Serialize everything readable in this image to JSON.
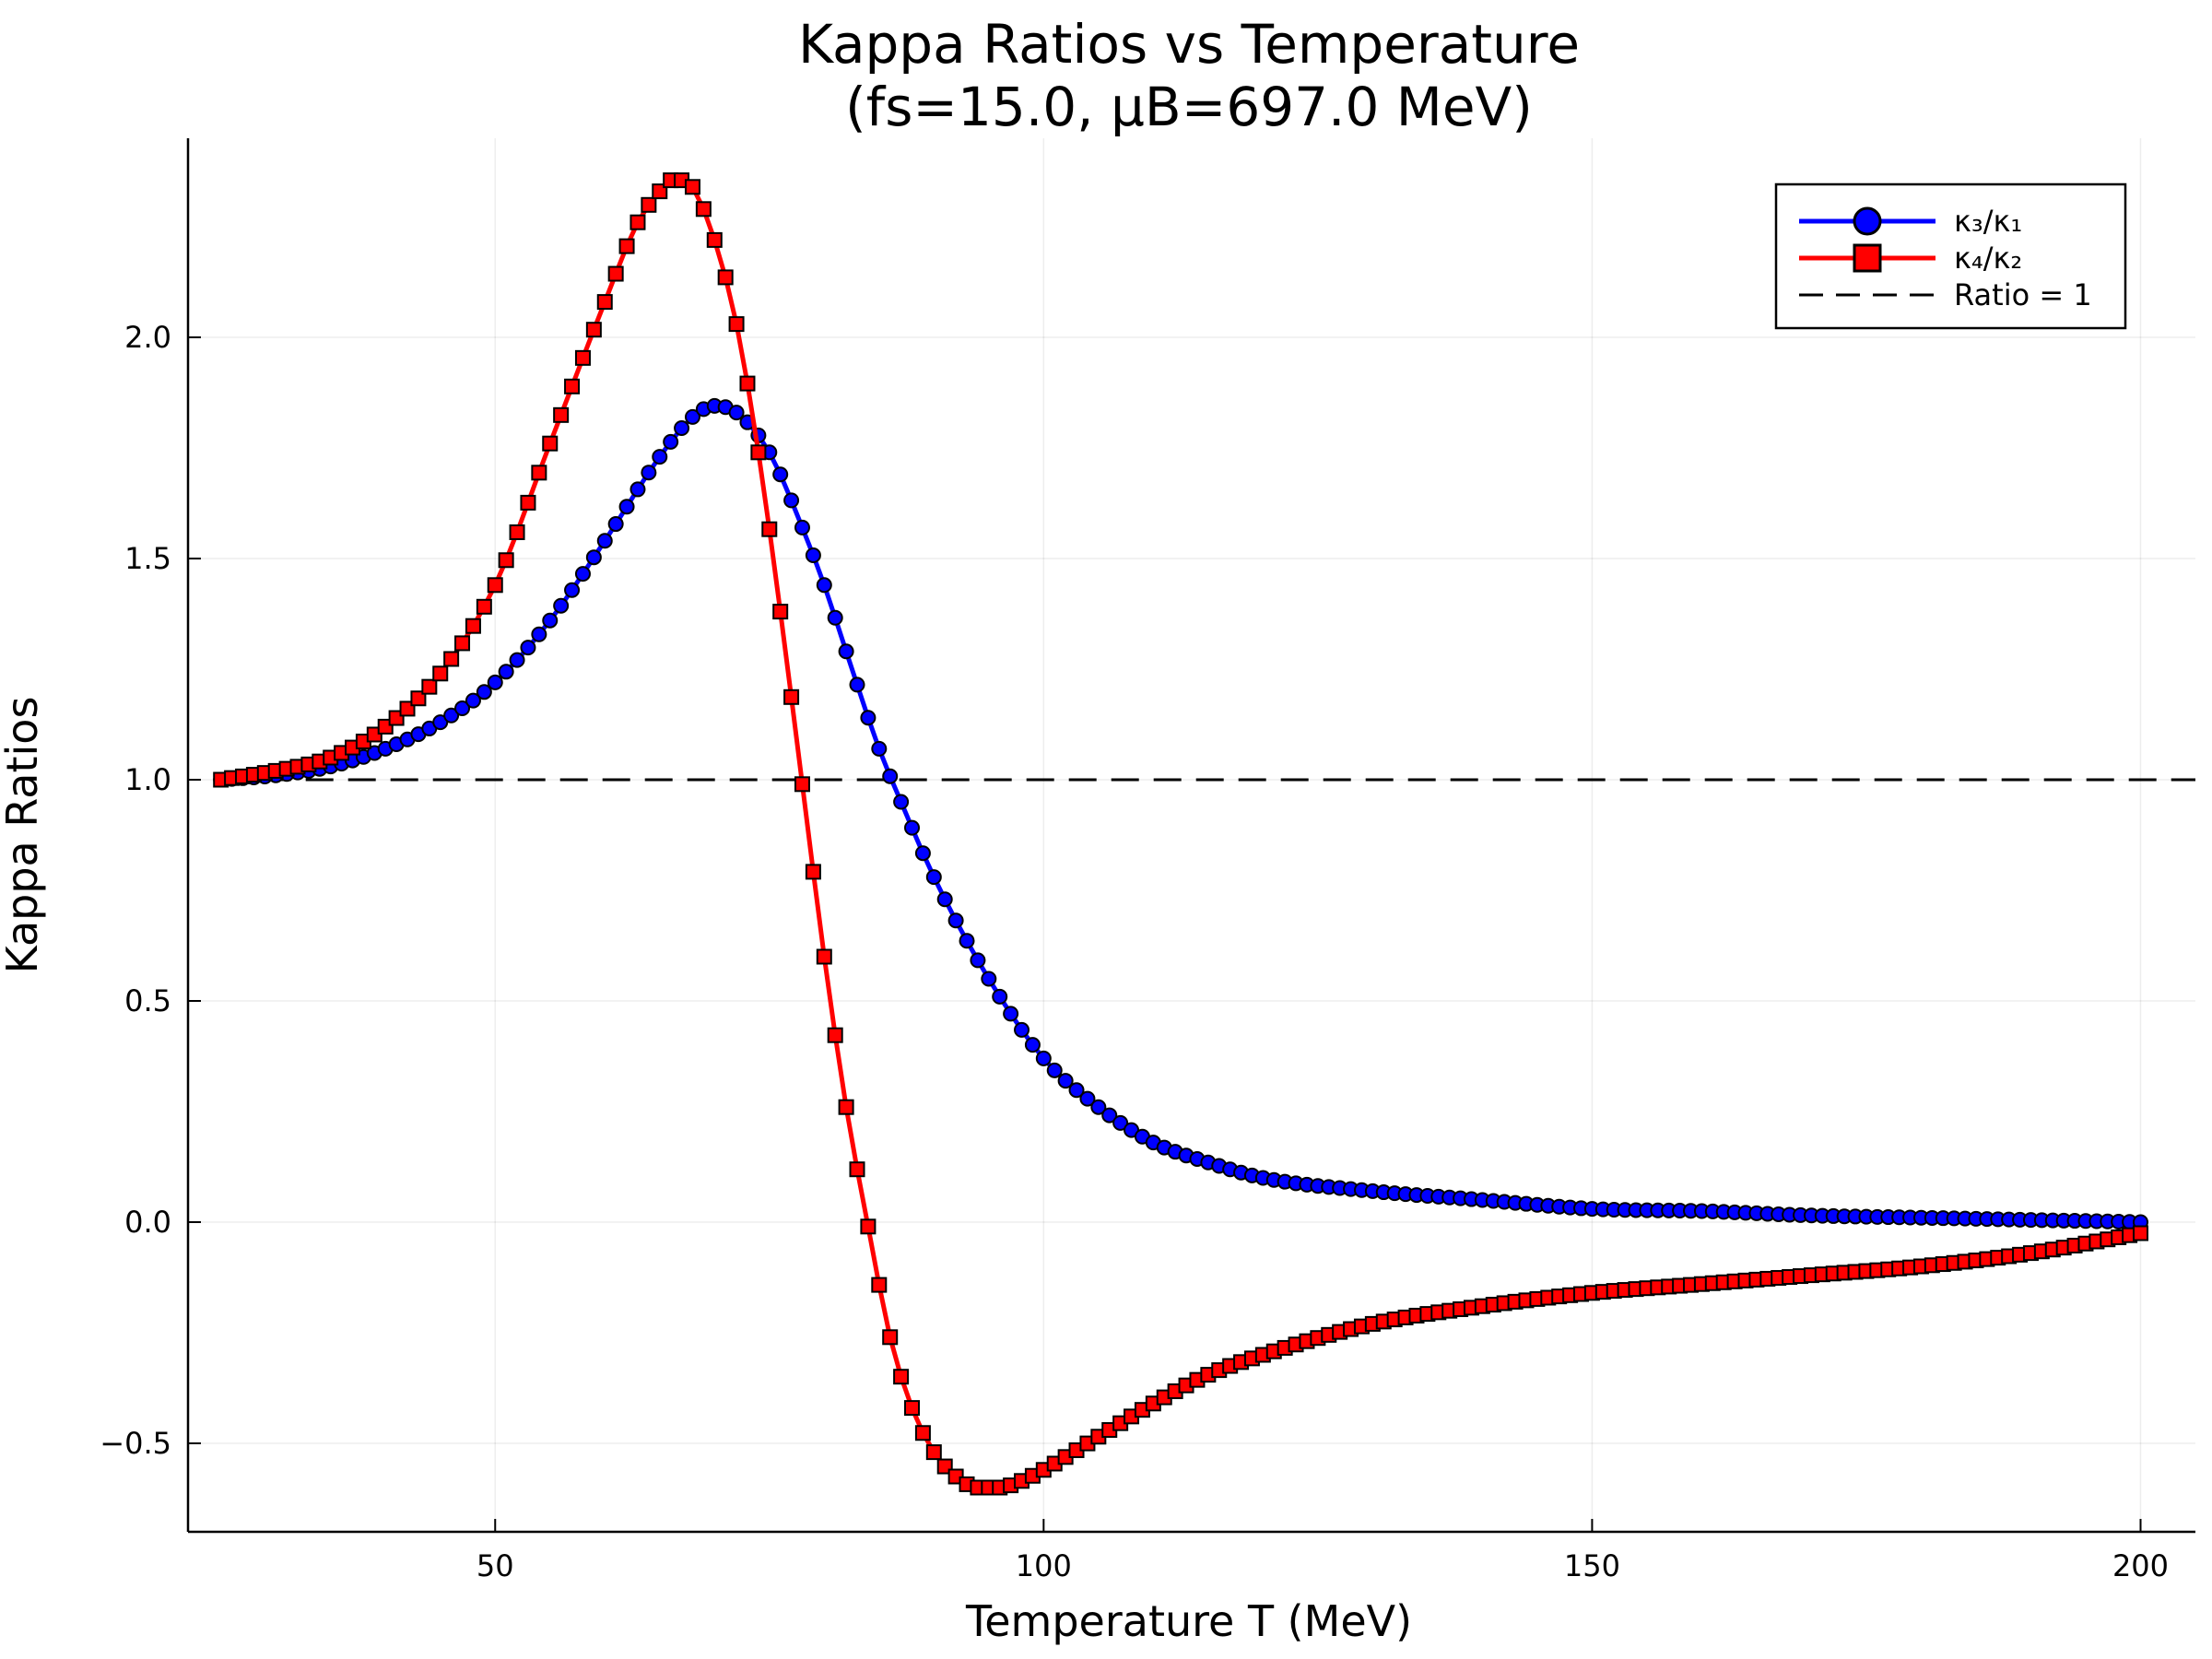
{
  "chart_data": {
    "type": "line",
    "title": "Kappa Ratios vs Temperature",
    "subtitle": "(fs=15.0, μB=697.0 MeV)",
    "xlabel": "Temperature T (MeV)",
    "ylabel": "Kappa Ratios",
    "xlim": [
      22,
      205
    ],
    "ylim": [
      -0.7,
      2.45
    ],
    "xticks": [
      50,
      100,
      150,
      200
    ],
    "xtick_labels": [
      "50",
      "100",
      "150",
      "200"
    ],
    "yticks": [
      -0.5,
      0.0,
      0.5,
      1.0,
      1.5,
      2.0
    ],
    "ytick_labels": [
      "−0.5",
      "0.0",
      "0.5",
      "1.0",
      "1.5",
      "2.0"
    ],
    "grid": true,
    "legend_position": "top-right",
    "x_start": 25,
    "x_end": 200,
    "x_step": 1,
    "series": [
      {
        "name": "κ₃/κ₁",
        "color": "#0000ff",
        "marker": "circle",
        "keypoints": [
          [
            25,
            1.0
          ],
          [
            30,
            1.01
          ],
          [
            35,
            1.03
          ],
          [
            40,
            1.07
          ],
          [
            45,
            1.13
          ],
          [
            50,
            1.22
          ],
          [
            55,
            1.36
          ],
          [
            60,
            1.54
          ],
          [
            65,
            1.73
          ],
          [
            68,
            1.82
          ],
          [
            70,
            1.845
          ],
          [
            72,
            1.83
          ],
          [
            75,
            1.74
          ],
          [
            78,
            1.57
          ],
          [
            80,
            1.44
          ],
          [
            82,
            1.29
          ],
          [
            85,
            1.07
          ],
          [
            87,
            0.95
          ],
          [
            90,
            0.78
          ],
          [
            95,
            0.55
          ],
          [
            100,
            0.37
          ],
          [
            105,
            0.26
          ],
          [
            110,
            0.18
          ],
          [
            115,
            0.135
          ],
          [
            120,
            0.1
          ],
          [
            130,
            0.07
          ],
          [
            140,
            0.05
          ],
          [
            150,
            0.03
          ],
          [
            160,
            0.025
          ],
          [
            170,
            0.015
          ],
          [
            180,
            0.01
          ],
          [
            190,
            0.005
          ],
          [
            200,
            0.0
          ]
        ]
      },
      {
        "name": "κ₄/κ₂",
        "color": "#ff0000",
        "marker": "square",
        "keypoints": [
          [
            25,
            1.0
          ],
          [
            30,
            1.02
          ],
          [
            35,
            1.05
          ],
          [
            40,
            1.12
          ],
          [
            45,
            1.24
          ],
          [
            50,
            1.44
          ],
          [
            55,
            1.76
          ],
          [
            60,
            2.08
          ],
          [
            63,
            2.26
          ],
          [
            65,
            2.33
          ],
          [
            66,
            2.355
          ],
          [
            67,
            2.355
          ],
          [
            68,
            2.34
          ],
          [
            70,
            2.22
          ],
          [
            72,
            2.03
          ],
          [
            74,
            1.74
          ],
          [
            76,
            1.38
          ],
          [
            78,
            0.99
          ],
          [
            80,
            0.6
          ],
          [
            82,
            0.26
          ],
          [
            84,
            -0.01
          ],
          [
            86,
            -0.26
          ],
          [
            88,
            -0.42
          ],
          [
            90,
            -0.52
          ],
          [
            92,
            -0.575
          ],
          [
            94,
            -0.6
          ],
          [
            96,
            -0.6
          ],
          [
            98,
            -0.585
          ],
          [
            100,
            -0.56
          ],
          [
            105,
            -0.485
          ],
          [
            110,
            -0.41
          ],
          [
            115,
            -0.345
          ],
          [
            120,
            -0.3
          ],
          [
            130,
            -0.23
          ],
          [
            140,
            -0.19
          ],
          [
            150,
            -0.16
          ],
          [
            160,
            -0.14
          ],
          [
            170,
            -0.12
          ],
          [
            180,
            -0.1
          ],
          [
            190,
            -0.07
          ],
          [
            200,
            -0.025
          ]
        ]
      },
      {
        "name": "Ratio = 1",
        "color": "#000000",
        "marker": "none",
        "dash": true,
        "keypoints": [
          [
            25,
            1.0
          ],
          [
            205,
            1.0
          ]
        ]
      }
    ]
  }
}
